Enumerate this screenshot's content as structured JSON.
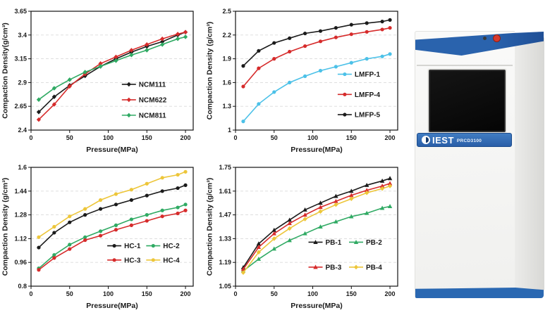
{
  "page": {
    "background": "#ffffff"
  },
  "device": {
    "brand": "IEST",
    "model": "PRCD3100",
    "body_color": "#f5f5f3",
    "accent_blue": "#2a63ad",
    "power_button_color": "#d6392c",
    "screen_color": "#0c0c0c"
  },
  "chart_data": [
    {
      "type": "line",
      "name": "ncm-compaction-density",
      "title": "",
      "xlabel": "Pressure(MPa)",
      "ylabel": "Compaction Density(g/cm³)",
      "xlim": [
        0,
        210
      ],
      "ylim": [
        2.4,
        3.65
      ],
      "xticks": [
        0,
        50,
        100,
        150,
        200
      ],
      "yticks": [
        2.4,
        2.65,
        2.9,
        3.15,
        3.4,
        3.65
      ],
      "grid": "horizontal-dashed",
      "legend_position": "inside-right",
      "legend": {
        "col_fx": [
          0.56
        ],
        "row_fy": [
          0.615,
          0.745,
          0.875
        ]
      },
      "x": [
        10,
        30,
        50,
        70,
        90,
        110,
        130,
        150,
        170,
        190,
        200
      ],
      "series": [
        {
          "name": "NCM111",
          "color": "#1b1b1b",
          "marker": "diamond",
          "values": [
            2.59,
            2.75,
            2.87,
            2.97,
            3.07,
            3.15,
            3.22,
            3.28,
            3.33,
            3.4,
            3.43
          ]
        },
        {
          "name": "NCM622",
          "color": "#d62b2b",
          "marker": "diamond",
          "values": [
            2.51,
            2.67,
            2.86,
            2.99,
            3.1,
            3.17,
            3.24,
            3.3,
            3.36,
            3.41,
            3.43
          ]
        },
        {
          "name": "NCM811",
          "color": "#2faa63",
          "marker": "diamond",
          "values": [
            2.72,
            2.84,
            2.93,
            3.01,
            3.07,
            3.13,
            3.19,
            3.24,
            3.3,
            3.36,
            3.38
          ]
        }
      ]
    },
    {
      "type": "line",
      "name": "lmfp-compaction-density",
      "title": "",
      "xlabel": "Pressure(MPa)",
      "ylabel": "Compaction Density (g/cm³)",
      "xlim": [
        0,
        210
      ],
      "ylim": [
        1,
        2.5
      ],
      "xticks": [
        0,
        50,
        100,
        150,
        200
      ],
      "yticks": [
        1,
        1.3,
        1.6,
        1.9,
        2.2,
        2.5
      ],
      "grid": "horizontal-dashed",
      "legend_position": "inside-right",
      "legend": {
        "col_fx": [
          0.63
        ],
        "row_fy": [
          0.53,
          0.7,
          0.87
        ]
      },
      "x": [
        10,
        30,
        50,
        70,
        90,
        110,
        130,
        150,
        170,
        190,
        200
      ],
      "series": [
        {
          "name": "LMFP-1",
          "color": "#4cc1e8",
          "marker": "circle",
          "values": [
            1.11,
            1.33,
            1.48,
            1.6,
            1.68,
            1.75,
            1.8,
            1.85,
            1.9,
            1.93,
            1.96
          ]
        },
        {
          "name": "LMFP-4",
          "color": "#d62b2b",
          "marker": "circle",
          "values": [
            1.55,
            1.78,
            1.9,
            1.99,
            2.06,
            2.12,
            2.17,
            2.21,
            2.24,
            2.27,
            2.29
          ]
        },
        {
          "name": "LMFP-5",
          "color": "#1b1b1b",
          "marker": "circle",
          "values": [
            1.81,
            2.0,
            2.1,
            2.16,
            2.22,
            2.25,
            2.29,
            2.33,
            2.35,
            2.37,
            2.39
          ]
        }
      ]
    },
    {
      "type": "line",
      "name": "hc-compaction-density",
      "title": "",
      "xlabel": "Pressure(MPa)",
      "ylabel": "Compaction Density (g/cm³)",
      "xlim": [
        0,
        210
      ],
      "ylim": [
        0.8,
        1.6
      ],
      "xticks": [
        0,
        50,
        100,
        150,
        200
      ],
      "yticks": [
        0.8,
        0.96,
        1.12,
        1.28,
        1.44,
        1.6
      ],
      "grid": "horizontal-dashed",
      "legend_position": "inside-right",
      "legend": {
        "col_fx": [
          0.47,
          0.71
        ],
        "row_fy": [
          0.66,
          0.78
        ]
      },
      "x": [
        10,
        30,
        50,
        70,
        90,
        110,
        130,
        150,
        170,
        190,
        200
      ],
      "series": [
        {
          "name": "HC-1",
          "color": "#1b1b1b",
          "marker": "circle",
          "values": [
            1.06,
            1.16,
            1.23,
            1.28,
            1.32,
            1.35,
            1.38,
            1.41,
            1.44,
            1.46,
            1.48
          ]
        },
        {
          "name": "HC-2",
          "color": "#2faa63",
          "marker": "circle",
          "values": [
            0.92,
            1.01,
            1.08,
            1.13,
            1.17,
            1.21,
            1.25,
            1.28,
            1.31,
            1.33,
            1.35
          ]
        },
        {
          "name": "HC-3",
          "color": "#d62b2b",
          "marker": "circle",
          "values": [
            0.91,
            0.99,
            1.05,
            1.11,
            1.14,
            1.18,
            1.21,
            1.24,
            1.27,
            1.29,
            1.31
          ]
        },
        {
          "name": "HC-4",
          "color": "#edc63a",
          "marker": "circle",
          "values": [
            1.13,
            1.2,
            1.27,
            1.32,
            1.38,
            1.42,
            1.45,
            1.49,
            1.53,
            1.55,
            1.57
          ]
        }
      ]
    },
    {
      "type": "line",
      "name": "pb-compaction-density",
      "title": "",
      "xlabel": "Pressure(MPa)",
      "ylabel": "Compaction Density (g/cm³)",
      "xlim": [
        0,
        210
      ],
      "ylim": [
        1.05,
        1.75
      ],
      "xticks": [
        0,
        50,
        100,
        150,
        200
      ],
      "yticks": [
        1.05,
        1.19,
        1.33,
        1.47,
        1.61,
        1.75
      ],
      "grid": "horizontal-dashed",
      "legend_position": "inside-right",
      "legend": {
        "col_fx": [
          0.45,
          0.7
        ],
        "row_fy": [
          0.63,
          0.84
        ]
      },
      "x": [
        10,
        30,
        50,
        70,
        90,
        110,
        130,
        150,
        170,
        190,
        200
      ],
      "series": [
        {
          "name": "PB-1",
          "color": "#1b1b1b",
          "marker": "triangle",
          "values": [
            1.16,
            1.3,
            1.38,
            1.44,
            1.5,
            1.54,
            1.58,
            1.61,
            1.645,
            1.67,
            1.685
          ]
        },
        {
          "name": "PB-2",
          "color": "#2faa63",
          "marker": "triangle",
          "values": [
            1.14,
            1.21,
            1.27,
            1.32,
            1.36,
            1.4,
            1.43,
            1.46,
            1.48,
            1.51,
            1.52
          ]
        },
        {
          "name": "PB-3",
          "color": "#d62b2b",
          "marker": "triangle",
          "values": [
            1.15,
            1.28,
            1.36,
            1.42,
            1.47,
            1.515,
            1.55,
            1.585,
            1.615,
            1.64,
            1.655
          ]
        },
        {
          "name": "PB-4",
          "color": "#edc63a",
          "marker": "diamond",
          "values": [
            1.13,
            1.25,
            1.33,
            1.39,
            1.445,
            1.49,
            1.53,
            1.565,
            1.6,
            1.625,
            1.64
          ]
        }
      ]
    }
  ]
}
